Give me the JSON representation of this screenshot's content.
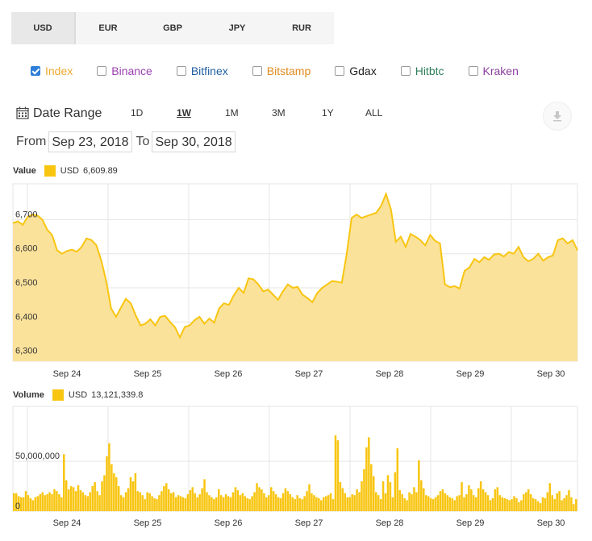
{
  "currencies": [
    {
      "label": "USD",
      "active": true
    },
    {
      "label": "EUR",
      "active": false
    },
    {
      "label": "GBP",
      "active": false
    },
    {
      "label": "JPY",
      "active": false
    },
    {
      "label": "RUR",
      "active": false
    }
  ],
  "exchanges": [
    {
      "label": "Index",
      "checked": true,
      "color": "#f0a830"
    },
    {
      "label": "Binance",
      "checked": false,
      "color": "#9c3fb2"
    },
    {
      "label": "Bitfinex",
      "checked": false,
      "color": "#1f5fa0"
    },
    {
      "label": "Bitstamp",
      "checked": false,
      "color": "#e08a1e"
    },
    {
      "label": "Gdax",
      "checked": false,
      "color": "#222222"
    },
    {
      "label": "Hitbtc",
      "checked": false,
      "color": "#2e7d5b"
    },
    {
      "label": "Kraken",
      "checked": false,
      "color": "#8b3f9e"
    }
  ],
  "range": {
    "title": "Date Range",
    "buttons": [
      "1D",
      "1W",
      "1M",
      "3M",
      "1Y",
      "ALL"
    ],
    "active": "1W",
    "download_icon": "download-icon"
  },
  "dates": {
    "from_label": "From",
    "from": "Sep 23, 2018",
    "to_label": "To",
    "to": "Sep 30, 2018"
  },
  "value_legend": {
    "label": "Value",
    "series": "USD",
    "value": "6,609.89"
  },
  "volume_legend": {
    "label": "Volume",
    "series": "USD",
    "value": "13,121,339.8"
  },
  "colors": {
    "fill": "#fbe29b",
    "line": "#f8c511",
    "bar": "#f8c511",
    "grid": "#e6e6e6"
  },
  "chart_data": [
    {
      "type": "area",
      "x_start": "Sep 23, 2018",
      "x_end": "Sep 30, 2018",
      "x_tick_labels": [
        "Sep 24",
        "Sep 25",
        "Sep 26",
        "Sep 27",
        "Sep 28",
        "Sep 29",
        "Sep 30"
      ],
      "y_tick_labels": [
        "6,300",
        "6,400",
        "6,500",
        "6,600",
        "6,700"
      ],
      "y_ticks": [
        6300,
        6400,
        6500,
        6600,
        6700
      ],
      "ylim": [
        6285,
        6805
      ],
      "grid": true,
      "values": [
        6690,
        6695,
        6685,
        6708,
        6715,
        6712,
        6700,
        6670,
        6655,
        6610,
        6600,
        6608,
        6612,
        6606,
        6620,
        6645,
        6640,
        6625,
        6580,
        6520,
        6440,
        6415,
        6442,
        6468,
        6455,
        6420,
        6390,
        6395,
        6408,
        6390,
        6415,
        6418,
        6400,
        6385,
        6355,
        6385,
        6390,
        6405,
        6415,
        6395,
        6410,
        6398,
        6440,
        6455,
        6450,
        6478,
        6500,
        6485,
        6528,
        6525,
        6510,
        6490,
        6495,
        6480,
        6465,
        6490,
        6510,
        6500,
        6503,
        6480,
        6470,
        6458,
        6485,
        6500,
        6510,
        6520,
        6518,
        6515,
        6600,
        6705,
        6715,
        6705,
        6710,
        6715,
        6720,
        6740,
        6775,
        6730,
        6635,
        6650,
        6620,
        6658,
        6650,
        6640,
        6625,
        6655,
        6638,
        6630,
        6510,
        6502,
        6505,
        6498,
        6550,
        6560,
        6585,
        6575,
        6590,
        6582,
        6598,
        6600,
        6592,
        6605,
        6600,
        6620,
        6590,
        6578,
        6585,
        6600,
        6580,
        6590,
        6595,
        6640,
        6645,
        6630,
        6640,
        6610
      ]
    },
    {
      "type": "bar",
      "x_tick_labels": [
        "Sep 24",
        "Sep 25",
        "Sep 26",
        "Sep 27",
        "Sep 28",
        "Sep 29",
        "Sep 30"
      ],
      "y_tick_labels": [
        "0",
        "50,000,000"
      ],
      "y_ticks": [
        0,
        50000000
      ],
      "ylim": [
        0,
        105000000
      ],
      "grid": true,
      "values": [
        18000000,
        18000000,
        15000000,
        14000000,
        14000000,
        20000000,
        16000000,
        13000000,
        11000000,
        14000000,
        15000000,
        17000000,
        19000000,
        16000000,
        17000000,
        19000000,
        17000000,
        22000000,
        20000000,
        17000000,
        14000000,
        57000000,
        31000000,
        22000000,
        25000000,
        24000000,
        20000000,
        26000000,
        21000000,
        19000000,
        16000000,
        15000000,
        19000000,
        25000000,
        29000000,
        20000000,
        16000000,
        30000000,
        36000000,
        55000000,
        68000000,
        47000000,
        38000000,
        34000000,
        25000000,
        16000000,
        14000000,
        19000000,
        23000000,
        34000000,
        30000000,
        38000000,
        20000000,
        19000000,
        16000000,
        12000000,
        19000000,
        18000000,
        15000000,
        13000000,
        12000000,
        16000000,
        20000000,
        25000000,
        28000000,
        22000000,
        18000000,
        19000000,
        14000000,
        16000000,
        15000000,
        14000000,
        13000000,
        17000000,
        21000000,
        24000000,
        18000000,
        14000000,
        17000000,
        23000000,
        32000000,
        19000000,
        16000000,
        14000000,
        12000000,
        14000000,
        22000000,
        16000000,
        14000000,
        17000000,
        15000000,
        14000000,
        19000000,
        24000000,
        21000000,
        16000000,
        18000000,
        15000000,
        13000000,
        12000000,
        15000000,
        19000000,
        28000000,
        24000000,
        22000000,
        18000000,
        14000000,
        16000000,
        24000000,
        20000000,
        17000000,
        14000000,
        13000000,
        18000000,
        23000000,
        20000000,
        17000000,
        14000000,
        12000000,
        16000000,
        13000000,
        12000000,
        15000000,
        20000000,
        27000000,
        18000000,
        16000000,
        14000000,
        13000000,
        11000000,
        14000000,
        15000000,
        16000000,
        18000000,
        12000000,
        76000000,
        71000000,
        29000000,
        23000000,
        18000000,
        14000000,
        14000000,
        17000000,
        16000000,
        22000000,
        19000000,
        30000000,
        42000000,
        64000000,
        74000000,
        47000000,
        35000000,
        19000000,
        16000000,
        12000000,
        30000000,
        18000000,
        36000000,
        29000000,
        14000000,
        39000000,
        63000000,
        21000000,
        17000000,
        13000000,
        11000000,
        19000000,
        17000000,
        24000000,
        19000000,
        51000000,
        31000000,
        23000000,
        16000000,
        15000000,
        13000000,
        12000000,
        14000000,
        16000000,
        20000000,
        22000000,
        18000000,
        16000000,
        14000000,
        13000000,
        11000000,
        15000000,
        16000000,
        29000000,
        14000000,
        17000000,
        26000000,
        22000000,
        16000000,
        14000000,
        23000000,
        30000000,
        22000000,
        19000000,
        16000000,
        11000000,
        13000000,
        22000000,
        24000000,
        16000000,
        14000000,
        13000000,
        12000000,
        11000000,
        12000000,
        15000000,
        13000000,
        9000000,
        11000000,
        17000000,
        19000000,
        22000000,
        17000000,
        13000000,
        12000000,
        10000000,
        8000000,
        14000000,
        13000000,
        19000000,
        28000000,
        16000000,
        12000000,
        18000000,
        20000000,
        11000000,
        13000000,
        16000000,
        21000000,
        14000000,
        7000000,
        12000000
      ]
    }
  ]
}
